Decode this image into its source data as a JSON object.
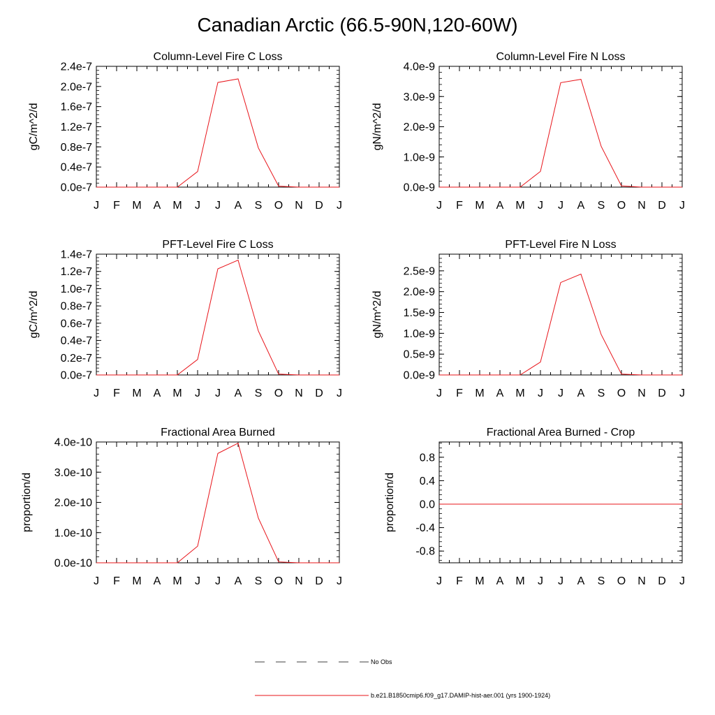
{
  "title": "Canadian Arctic (66.5-90N,120-60W)",
  "colors": {
    "model_line": "#e8141a",
    "obs_line": "#000000",
    "frame": "#000000"
  },
  "legend": {
    "obs_label": "No Obs",
    "model_label": "b.e21.B1850cmip6.f09_g17.DAMIP-hist-aer.001 (yrs 1900-1924)"
  },
  "chart_data": [
    {
      "type": "line",
      "title": "Column-Level Fire C Loss",
      "ylabel": "gC/m^2/d",
      "categories": [
        "J",
        "F",
        "M",
        "A",
        "M",
        "J",
        "J",
        "A",
        "S",
        "O",
        "N",
        "D",
        "J"
      ],
      "ylim": [
        0,
        2.4e-07
      ],
      "yticks": [
        0,
        4e-08,
        8e-08,
        1.2e-07,
        1.6e-07,
        2e-07,
        2.4e-07
      ],
      "yticklabels": [
        "0.0e-7",
        "0.4e-7",
        "0.8e-7",
        "1.2e-7",
        "1.6e-7",
        "2.0e-7",
        "2.4e-7"
      ],
      "series": [
        {
          "values": [
            0,
            0,
            0,
            0,
            0,
            3.1e-08,
            2.08e-07,
            2.15e-07,
            7.8e-08,
            2e-09,
            0,
            0,
            0
          ]
        }
      ]
    },
    {
      "type": "line",
      "title": "Column-Level Fire N Loss",
      "ylabel": "gN/m^2/d",
      "categories": [
        "J",
        "F",
        "M",
        "A",
        "M",
        "J",
        "J",
        "A",
        "S",
        "O",
        "N",
        "D",
        "J"
      ],
      "ylim": [
        0,
        4e-09
      ],
      "yticks": [
        0,
        1e-09,
        2e-09,
        3e-09,
        4e-09
      ],
      "yticklabels": [
        "0.0e-9",
        "1.0e-9",
        "2.0e-9",
        "3.0e-9",
        "4.0e-9"
      ],
      "series": [
        {
          "values": [
            0,
            0,
            0,
            0,
            0,
            5.2e-10,
            3.46e-09,
            3.57e-09,
            1.35e-09,
            4e-11,
            0,
            0,
            0
          ]
        }
      ]
    },
    {
      "type": "line",
      "title": "PFT-Level Fire C Loss",
      "ylabel": "gC/m^2/d",
      "categories": [
        "J",
        "F",
        "M",
        "A",
        "M",
        "J",
        "J",
        "A",
        "S",
        "O",
        "N",
        "D",
        "J"
      ],
      "ylim": [
        0,
        1.4e-07
      ],
      "yticks": [
        0,
        2e-08,
        4e-08,
        6e-08,
        8e-08,
        1e-07,
        1.2e-07,
        1.4e-07
      ],
      "yticklabels": [
        "0.0e-7",
        "0.2e-7",
        "0.4e-7",
        "0.6e-7",
        "0.8e-7",
        "1.0e-7",
        "1.2e-7",
        "1.4e-7"
      ],
      "series": [
        {
          "values": [
            0,
            0,
            0,
            0,
            0,
            1.8e-08,
            1.23e-07,
            1.33e-07,
            5.1e-08,
            1e-09,
            0,
            0,
            0
          ]
        }
      ]
    },
    {
      "type": "line",
      "title": "PFT-Level Fire N Loss",
      "ylabel": "gN/m^2/d",
      "categories": [
        "J",
        "F",
        "M",
        "A",
        "M",
        "J",
        "J",
        "A",
        "S",
        "O",
        "N",
        "D",
        "J"
      ],
      "ylim": [
        0,
        2.9e-09
      ],
      "yticks": [
        0,
        5e-10,
        1e-09,
        1.5e-09,
        2e-09,
        2.5e-09
      ],
      "yticklabels": [
        "0.0e-9",
        "0.5e-9",
        "1.0e-9",
        "1.5e-9",
        "2.0e-9",
        "2.5e-9"
      ],
      "series": [
        {
          "values": [
            0,
            0,
            0,
            0,
            0,
            3.1e-10,
            2.22e-09,
            2.42e-09,
            9.7e-10,
            2e-11,
            0,
            0,
            0
          ]
        }
      ]
    },
    {
      "type": "line",
      "title": "Fractional Area Burned",
      "ylabel": "proportion/d",
      "categories": [
        "J",
        "F",
        "M",
        "A",
        "M",
        "J",
        "J",
        "A",
        "S",
        "O",
        "N",
        "D",
        "J"
      ],
      "ylim": [
        0,
        4e-10
      ],
      "yticks": [
        0,
        1e-10,
        2e-10,
        3e-10,
        4e-10
      ],
      "yticklabels": [
        "0.0e-10",
        "1.0e-10",
        "2.0e-10",
        "3.0e-10",
        "4.0e-10"
      ],
      "series": [
        {
          "values": [
            0,
            0,
            0,
            0,
            0,
            5.5e-11,
            3.62e-10,
            3.96e-10,
            1.48e-10,
            3e-12,
            0,
            0,
            0
          ]
        }
      ]
    },
    {
      "type": "line",
      "title": "Fractional Area Burned - Crop",
      "ylabel": "proportion/d",
      "categories": [
        "J",
        "F",
        "M",
        "A",
        "M",
        "J",
        "J",
        "A",
        "S",
        "O",
        "N",
        "D",
        "J"
      ],
      "ylim": [
        -1.0,
        1.06
      ],
      "yticks": [
        -0.8,
        -0.4,
        0,
        0.4,
        0.8
      ],
      "yticklabels": [
        "-0.8",
        "-0.4",
        "0.0",
        "0.4",
        "0.8"
      ],
      "series": [
        {
          "values": [
            0,
            0,
            0,
            0,
            0,
            0,
            0,
            0,
            0,
            0,
            0,
            0,
            0
          ]
        }
      ]
    }
  ]
}
